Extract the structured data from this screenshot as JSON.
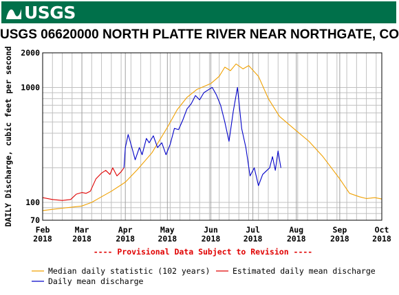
{
  "header": {
    "logo_text": "USGS",
    "logo_icon": "usgs-wave-mark"
  },
  "colors": {
    "banner": "#00704a",
    "median": "#f0a000",
    "estimated": "#e00000",
    "daily": "#0000c8",
    "grid": "#c0c0c0",
    "note": "#e00000"
  },
  "chart_data": {
    "type": "line",
    "title": "USGS 06620000 NORTH PLATTE RIVER NEAR NORTHGATE, CO",
    "ylabel": "DAILY Discharge, cubic feet per second",
    "yscale": "log",
    "ylim": [
      70,
      2000
    ],
    "xlim": [
      "2018-02-01",
      "2018-10-01"
    ],
    "y_ticks": [
      70,
      100,
      1000,
      2000
    ],
    "x_ticks": [
      {
        "date": "2018-02-01",
        "label1": "Feb",
        "label2": "2018"
      },
      {
        "date": "2018-03-01",
        "label1": "Mar",
        "label2": "2018"
      },
      {
        "date": "2018-04-01",
        "label1": "Apr",
        "label2": "2018"
      },
      {
        "date": "2018-05-01",
        "label1": "May",
        "label2": "2018"
      },
      {
        "date": "2018-06-01",
        "label1": "Jun",
        "label2": "2018"
      },
      {
        "date": "2018-07-01",
        "label1": "Jul",
        "label2": "2018"
      },
      {
        "date": "2018-08-01",
        "label1": "Aug",
        "label2": "2018"
      },
      {
        "date": "2018-09-01",
        "label1": "Sep",
        "label2": "2018"
      },
      {
        "date": "2018-10-01",
        "label1": "Oct",
        "label2": "2018"
      }
    ],
    "grid": true,
    "provisional_note": "---- Provisional Data Subject to Revision ----",
    "series": [
      {
        "name": "Median daily statistic (102 years)",
        "color": "#f0a000",
        "points": [
          [
            "2018-02-01",
            85
          ],
          [
            "2018-02-08",
            87
          ],
          [
            "2018-02-15",
            89
          ],
          [
            "2018-02-22",
            91
          ],
          [
            "2018-03-01",
            93
          ],
          [
            "2018-03-08",
            100
          ],
          [
            "2018-03-15",
            112
          ],
          [
            "2018-03-22",
            125
          ],
          [
            "2018-04-01",
            150
          ],
          [
            "2018-04-10",
            195
          ],
          [
            "2018-04-20",
            270
          ],
          [
            "2018-05-01",
            450
          ],
          [
            "2018-05-08",
            640
          ],
          [
            "2018-05-15",
            820
          ],
          [
            "2018-05-22",
            960
          ],
          [
            "2018-06-01",
            1080
          ],
          [
            "2018-06-07",
            1250
          ],
          [
            "2018-06-11",
            1500
          ],
          [
            "2018-06-15",
            1400
          ],
          [
            "2018-06-19",
            1600
          ],
          [
            "2018-06-24",
            1450
          ],
          [
            "2018-06-28",
            1550
          ],
          [
            "2018-07-05",
            1250
          ],
          [
            "2018-07-12",
            800
          ],
          [
            "2018-07-20",
            560
          ],
          [
            "2018-08-01",
            420
          ],
          [
            "2018-08-10",
            340
          ],
          [
            "2018-08-20",
            250
          ],
          [
            "2018-09-01",
            160
          ],
          [
            "2018-09-08",
            120
          ],
          [
            "2018-09-15",
            112
          ],
          [
            "2018-09-20",
            108
          ],
          [
            "2018-09-26",
            110
          ],
          [
            "2018-10-01",
            107
          ]
        ]
      },
      {
        "name": "Estimated daily mean discharge",
        "color": "#e00000",
        "points": [
          [
            "2018-02-01",
            110
          ],
          [
            "2018-02-08",
            106
          ],
          [
            "2018-02-15",
            104
          ],
          [
            "2018-02-21",
            106
          ],
          [
            "2018-02-25",
            118
          ],
          [
            "2018-03-01",
            122
          ],
          [
            "2018-03-04",
            120
          ],
          [
            "2018-03-07",
            125
          ],
          [
            "2018-03-11",
            160
          ],
          [
            "2018-03-15",
            180
          ],
          [
            "2018-03-18",
            190
          ],
          [
            "2018-03-21",
            175
          ],
          [
            "2018-03-23",
            200
          ],
          [
            "2018-03-26",
            170
          ],
          [
            "2018-03-29",
            185
          ],
          [
            "2018-03-31",
            200
          ]
        ]
      },
      {
        "name": "Daily mean discharge",
        "color": "#0000c8",
        "points": [
          [
            "2018-03-31",
            200
          ],
          [
            "2018-04-01",
            300
          ],
          [
            "2018-04-03",
            390
          ],
          [
            "2018-04-06",
            290
          ],
          [
            "2018-04-08",
            235
          ],
          [
            "2018-04-11",
            300
          ],
          [
            "2018-04-13",
            260
          ],
          [
            "2018-04-16",
            360
          ],
          [
            "2018-04-18",
            330
          ],
          [
            "2018-04-21",
            380
          ],
          [
            "2018-04-24",
            300
          ],
          [
            "2018-04-27",
            330
          ],
          [
            "2018-04-30",
            260
          ],
          [
            "2018-05-03",
            320
          ],
          [
            "2018-05-06",
            440
          ],
          [
            "2018-05-09",
            430
          ],
          [
            "2018-05-12",
            520
          ],
          [
            "2018-05-15",
            650
          ],
          [
            "2018-05-18",
            720
          ],
          [
            "2018-05-21",
            850
          ],
          [
            "2018-05-24",
            780
          ],
          [
            "2018-05-27",
            900
          ],
          [
            "2018-05-30",
            950
          ],
          [
            "2018-06-02",
            1000
          ],
          [
            "2018-06-05",
            860
          ],
          [
            "2018-06-08",
            700
          ],
          [
            "2018-06-11",
            500
          ],
          [
            "2018-06-14",
            340
          ],
          [
            "2018-06-17",
            620
          ],
          [
            "2018-06-20",
            1000
          ],
          [
            "2018-06-23",
            440
          ],
          [
            "2018-06-26",
            300
          ],
          [
            "2018-06-29",
            170
          ],
          [
            "2018-07-02",
            200
          ],
          [
            "2018-07-05",
            140
          ],
          [
            "2018-07-08",
            175
          ],
          [
            "2018-07-11",
            190
          ],
          [
            "2018-07-13",
            200
          ],
          [
            "2018-07-15",
            250
          ],
          [
            "2018-07-17",
            190
          ],
          [
            "2018-07-19",
            280
          ],
          [
            "2018-07-21",
            200
          ]
        ]
      }
    ],
    "legend": {
      "placement": "bottom"
    }
  }
}
